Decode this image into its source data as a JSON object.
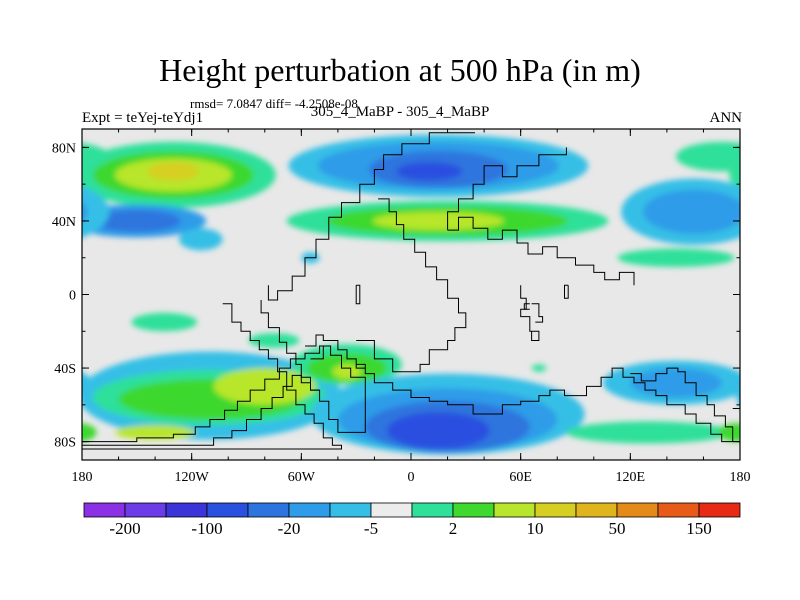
{
  "figure": {
    "title": "Height perturbation at 500 hPa (in m)",
    "stats": "rmsd= 7.0847 diff= -4.2508e-08",
    "left_label": "Expt = teYej-teYdj1",
    "center_label": "305_4_MaBP - 305_4_MaBP",
    "right_label": "ANN"
  },
  "map": {
    "projection": "cylindrical-equidistant",
    "lon_range": [
      -180,
      180
    ],
    "lat_range": [
      -90,
      90
    ],
    "x_ticks": [
      {
        "value": -180,
        "label": "180"
      },
      {
        "value": -120,
        "label": "120W"
      },
      {
        "value": -60,
        "label": "60W"
      },
      {
        "value": 0,
        "label": "0"
      },
      {
        "value": 60,
        "label": "60E"
      },
      {
        "value": 120,
        "label": "120E"
      },
      {
        "value": 180,
        "label": "180"
      }
    ],
    "y_ticks": [
      {
        "value": 80,
        "label": "80N"
      },
      {
        "value": 40,
        "label": "40N"
      },
      {
        "value": 0,
        "label": "0"
      },
      {
        "value": -40,
        "label": "40S"
      },
      {
        "value": -80,
        "label": "80S"
      }
    ],
    "background_color": "#e8e8e8",
    "coastline_color": "#000000"
  },
  "colorbar": {
    "colors": [
      "#8c30e6",
      "#6a3de8",
      "#3b34d8",
      "#2a50e0",
      "#2e74de",
      "#2e9ce8",
      "#36bfe6",
      "#ececec",
      "#2ee09a",
      "#3ed82e",
      "#b7e62c",
      "#d6cf22",
      "#e0b41c",
      "#e48a18",
      "#e85a18",
      "#e62a14"
    ],
    "labels": [
      {
        "boundary": 1,
        "text": "-200"
      },
      {
        "boundary": 3,
        "text": "-100"
      },
      {
        "boundary": 5,
        "text": "-20"
      },
      {
        "boundary": 7,
        "text": "-5"
      },
      {
        "boundary": 9,
        "text": "2"
      },
      {
        "boundary": 11,
        "text": "10"
      },
      {
        "boundary": 13,
        "text": "50"
      },
      {
        "boundary": 15,
        "text": "150"
      }
    ]
  },
  "field_blobs": [
    {
      "lon": -130,
      "lat": 65,
      "rlon": 56,
      "rlat": 18,
      "level": 8
    },
    {
      "lon": -130,
      "lat": 65,
      "rlon": 44,
      "rlat": 13,
      "level": 9
    },
    {
      "lon": -130,
      "lat": 65,
      "rlon": 32,
      "rlat": 9,
      "level": 10
    },
    {
      "lon": -130,
      "lat": 67,
      "rlon": 14,
      "rlat": 5,
      "level": 11
    },
    {
      "lon": -150,
      "lat": 40,
      "rlon": 38,
      "rlat": 9,
      "level": 5
    },
    {
      "lon": -150,
      "lat": 40,
      "rlon": 24,
      "rlat": 6,
      "level": 4
    },
    {
      "lon": -115,
      "lat": 30,
      "rlon": 12,
      "rlat": 6,
      "level": 6
    },
    {
      "lon": 15,
      "lat": 70,
      "rlon": 82,
      "rlat": 17,
      "level": 6
    },
    {
      "lon": 15,
      "lat": 70,
      "rlon": 66,
      "rlat": 13,
      "level": 5
    },
    {
      "lon": 15,
      "lat": 68,
      "rlon": 38,
      "rlat": 10,
      "level": 4
    },
    {
      "lon": 10,
      "lat": 67,
      "rlon": 18,
      "rlat": 5,
      "level": 3
    },
    {
      "lon": 20,
      "lat": 40,
      "rlon": 88,
      "rlat": 11,
      "level": 8
    },
    {
      "lon": 20,
      "lat": 40,
      "rlon": 66,
      "rlat": 8,
      "level": 9
    },
    {
      "lon": 15,
      "lat": 40,
      "rlon": 36,
      "rlat": 5,
      "level": 10
    },
    {
      "lon": 155,
      "lat": 45,
      "rlon": 40,
      "rlat": 18,
      "level": 6
    },
    {
      "lon": 155,
      "lat": 45,
      "rlon": 28,
      "rlat": 12,
      "level": 5
    },
    {
      "lon": 170,
      "lat": 75,
      "rlon": 25,
      "rlat": 8,
      "level": 8
    },
    {
      "lon": 145,
      "lat": 20,
      "rlon": 32,
      "rlat": 5,
      "level": 8
    },
    {
      "lon": -135,
      "lat": -15,
      "rlon": 18,
      "rlat": 5,
      "level": 8
    },
    {
      "lon": -55,
      "lat": 20,
      "rlon": 5,
      "rlat": 3,
      "level": 6
    },
    {
      "lon": -75,
      "lat": -25,
      "rlon": 14,
      "rlat": 4,
      "level": 8
    },
    {
      "lon": -110,
      "lat": -55,
      "rlon": 72,
      "rlat": 24,
      "level": 6
    },
    {
      "lon": -110,
      "lat": -56,
      "rlon": 64,
      "rlat": 15,
      "level": 8
    },
    {
      "lon": -110,
      "lat": -57,
      "rlon": 50,
      "rlat": 11,
      "level": 9
    },
    {
      "lon": -80,
      "lat": -50,
      "rlon": 28,
      "rlat": 10,
      "level": 10
    },
    {
      "lon": -140,
      "lat": -75,
      "rlon": 22,
      "rlat": 4,
      "level": 10
    },
    {
      "lon": -35,
      "lat": -38,
      "rlon": 30,
      "rlat": 11,
      "level": 8
    },
    {
      "lon": -35,
      "lat": -40,
      "rlon": 22,
      "rlat": 8,
      "level": 9
    },
    {
      "lon": -35,
      "lat": -42,
      "rlon": 8,
      "rlat": 4,
      "level": 10
    },
    {
      "lon": 20,
      "lat": -65,
      "rlon": 75,
      "rlat": 22,
      "level": 6
    },
    {
      "lon": 20,
      "lat": -68,
      "rlon": 60,
      "rlat": 17,
      "level": 5
    },
    {
      "lon": 20,
      "lat": -72,
      "rlon": 45,
      "rlat": 14,
      "level": 4
    },
    {
      "lon": 15,
      "lat": -74,
      "rlon": 28,
      "rlat": 10,
      "level": 3
    },
    {
      "lon": 145,
      "lat": -48,
      "rlon": 40,
      "rlat": 12,
      "level": 6
    },
    {
      "lon": 145,
      "lat": -48,
      "rlon": 25,
      "rlat": 8,
      "level": 5
    },
    {
      "lon": 130,
      "lat": -75,
      "rlon": 45,
      "rlat": 6,
      "level": 8
    },
    {
      "lon": 178,
      "lat": -75,
      "rlon": 10,
      "rlat": 5,
      "level": 9
    },
    {
      "lon": 70,
      "lat": -40,
      "rlon": 4,
      "rlat": 2,
      "level": 8
    }
  ],
  "coastlines": [
    [
      [
        -103,
        -5
      ],
      [
        -98,
        -5
      ],
      [
        -98,
        -15
      ],
      [
        -93,
        -15
      ],
      [
        -93,
        -20
      ],
      [
        -88,
        -20
      ],
      [
        -88,
        -25
      ],
      [
        -83,
        -25
      ],
      [
        -83,
        -30
      ],
      [
        -78,
        -30
      ],
      [
        -78,
        -35
      ],
      [
        -73,
        -35
      ],
      [
        -73,
        -42
      ],
      [
        -68,
        -42
      ],
      [
        -68,
        -52
      ],
      [
        -63,
        -52
      ],
      [
        -63,
        -60
      ],
      [
        -58,
        -60
      ],
      [
        -58,
        -65
      ],
      [
        -53,
        -65
      ],
      [
        -53,
        -70
      ],
      [
        -48,
        -70
      ],
      [
        -48,
        -78
      ],
      [
        -43,
        -78
      ],
      [
        -43,
        -82
      ],
      [
        -38,
        -82
      ],
      [
        -38,
        -84
      ],
      [
        -180,
        -84
      ]
    ],
    [
      [
        -180,
        -80
      ],
      [
        -150,
        -80
      ],
      [
        -150,
        -78
      ],
      [
        -130,
        -78
      ],
      [
        -130,
        -76
      ],
      [
        -118,
        -76
      ],
      [
        -118,
        -72
      ],
      [
        -110,
        -72
      ],
      [
        -110,
        -68
      ],
      [
        -102,
        -68
      ],
      [
        -102,
        -63
      ],
      [
        -95,
        -63
      ],
      [
        -95,
        -58
      ],
      [
        -88,
        -58
      ],
      [
        -88,
        -52
      ],
      [
        -80,
        -52
      ],
      [
        -80,
        -46
      ],
      [
        -72,
        -46
      ],
      [
        -72,
        -40
      ],
      [
        -66,
        -40
      ],
      [
        -66,
        -35
      ],
      [
        -58,
        -35
      ],
      [
        -58,
        -32
      ],
      [
        -50,
        -32
      ],
      [
        -50,
        -28
      ],
      [
        -44,
        -28
      ],
      [
        -44,
        -33
      ],
      [
        -38,
        -33
      ],
      [
        -38,
        -40
      ],
      [
        -33,
        -40
      ],
      [
        -33,
        -45
      ],
      [
        -25,
        -45
      ],
      [
        -25,
        -60
      ],
      [
        -25,
        -75
      ],
      [
        -40,
        -75
      ],
      [
        -40,
        -68
      ],
      [
        -45,
        -68
      ],
      [
        -45,
        -58
      ],
      [
        -50,
        -58
      ],
      [
        -50,
        -52
      ],
      [
        -55,
        -52
      ],
      [
        -55,
        -48
      ],
      [
        -60,
        -48
      ],
      [
        -60,
        -44
      ],
      [
        -65,
        -44
      ],
      [
        -65,
        -50
      ],
      [
        -70,
        -50
      ],
      [
        -70,
        -56
      ],
      [
        -76,
        -56
      ],
      [
        -76,
        -62
      ],
      [
        -82,
        -62
      ],
      [
        -82,
        -68
      ],
      [
        -90,
        -68
      ],
      [
        -90,
        -74
      ],
      [
        -98,
        -74
      ],
      [
        -98,
        -78
      ],
      [
        -108,
        -78
      ],
      [
        -108,
        -82
      ],
      [
        -180,
        -82
      ]
    ],
    [
      [
        -55,
        -35
      ],
      [
        -48,
        -35
      ],
      [
        -48,
        -28
      ],
      [
        -44,
        -28
      ]
    ],
    [
      [
        -82,
        -3
      ],
      [
        -82,
        -10
      ],
      [
        -78,
        -10
      ],
      [
        -78,
        -18
      ],
      [
        -72,
        -18
      ],
      [
        -72,
        -26
      ],
      [
        -68,
        -26
      ],
      [
        -68,
        -32
      ],
      [
        -63,
        -32
      ],
      [
        -63,
        -38
      ],
      [
        -60,
        -38
      ],
      [
        -60,
        -45
      ],
      [
        -55,
        -45
      ],
      [
        -55,
        -52
      ],
      [
        -50,
        -52
      ]
    ],
    [
      [
        -58,
        -28
      ],
      [
        -52,
        -28
      ],
      [
        -52,
        -22
      ],
      [
        -48,
        -22
      ],
      [
        -48,
        -25
      ],
      [
        -40,
        -25
      ],
      [
        -40,
        -30
      ],
      [
        -35,
        -30
      ],
      [
        -35,
        -35
      ],
      [
        -30,
        -35
      ],
      [
        -30,
        -40
      ],
      [
        -25,
        -40
      ]
    ],
    [
      [
        -30,
        5
      ],
      [
        -30,
        -5
      ],
      [
        -28,
        -5
      ],
      [
        -28,
        5
      ],
      [
        -30,
        5
      ]
    ],
    [
      [
        -78,
        5
      ],
      [
        -78,
        -3
      ],
      [
        -73,
        -3
      ],
      [
        -73,
        2
      ],
      [
        -65,
        2
      ],
      [
        -65,
        10
      ],
      [
        -58,
        10
      ],
      [
        -58,
        20
      ],
      [
        -52,
        20
      ],
      [
        -52,
        30
      ],
      [
        -45,
        30
      ],
      [
        -45,
        42
      ],
      [
        -38,
        42
      ],
      [
        -38,
        50
      ],
      [
        -28,
        50
      ],
      [
        -28,
        60
      ],
      [
        -20,
        60
      ],
      [
        -20,
        68
      ],
      [
        -15,
        68
      ],
      [
        -15,
        76
      ],
      [
        -5,
        76
      ],
      [
        -5,
        82
      ],
      [
        10,
        82
      ],
      [
        10,
        88
      ],
      [
        35,
        88
      ]
    ],
    [
      [
        -18,
        52
      ],
      [
        -12,
        52
      ],
      [
        -12,
        45
      ],
      [
        -8,
        45
      ],
      [
        -8,
        38
      ],
      [
        -4,
        38
      ],
      [
        -4,
        30
      ],
      [
        2,
        30
      ],
      [
        2,
        23
      ],
      [
        8,
        23
      ],
      [
        8,
        15
      ],
      [
        14,
        15
      ],
      [
        14,
        8
      ],
      [
        20,
        8
      ],
      [
        20,
        -2
      ],
      [
        26,
        -2
      ],
      [
        26,
        -10
      ],
      [
        30,
        -10
      ],
      [
        30,
        -18
      ],
      [
        24,
        -18
      ],
      [
        24,
        -25
      ],
      [
        20,
        -25
      ],
      [
        20,
        -30
      ],
      [
        10,
        -30
      ],
      [
        10,
        -38
      ],
      [
        5,
        -38
      ],
      [
        5,
        -42
      ],
      [
        -10,
        -42
      ],
      [
        -10,
        -35
      ],
      [
        -20,
        -35
      ],
      [
        -20,
        -25
      ],
      [
        -30,
        -25
      ]
    ],
    [
      [
        20,
        35
      ],
      [
        26,
        35
      ],
      [
        26,
        42
      ],
      [
        34,
        42
      ],
      [
        34,
        36
      ],
      [
        42,
        36
      ],
      [
        42,
        30
      ],
      [
        50,
        30
      ],
      [
        50,
        35
      ],
      [
        58,
        35
      ],
      [
        58,
        28
      ],
      [
        64,
        28
      ],
      [
        64,
        22
      ],
      [
        72,
        22
      ],
      [
        72,
        26
      ],
      [
        80,
        26
      ],
      [
        80,
        20
      ],
      [
        90,
        20
      ],
      [
        90,
        16
      ],
      [
        100,
        16
      ],
      [
        100,
        12
      ],
      [
        106,
        12
      ],
      [
        106,
        8
      ],
      [
        114,
        8
      ],
      [
        114,
        12
      ],
      [
        122,
        12
      ],
      [
        122,
        5
      ]
    ],
    [
      [
        20,
        35
      ],
      [
        20,
        45
      ],
      [
        26,
        45
      ],
      [
        26,
        52
      ],
      [
        34,
        52
      ],
      [
        34,
        60
      ],
      [
        40,
        60
      ],
      [
        40,
        70
      ],
      [
        50,
        70
      ],
      [
        50,
        64
      ],
      [
        58,
        64
      ],
      [
        58,
        70
      ],
      [
        70,
        70
      ],
      [
        70,
        76
      ],
      [
        85,
        76
      ],
      [
        85,
        80
      ]
    ],
    [
      [
        60,
        5
      ],
      [
        60,
        -2
      ],
      [
        63,
        -2
      ],
      [
        63,
        -8
      ],
      [
        60,
        -8
      ],
      [
        60,
        -12
      ],
      [
        65,
        -12
      ],
      [
        65,
        -20
      ],
      [
        70,
        -20
      ],
      [
        70,
        -25
      ],
      [
        66,
        -25
      ],
      [
        66,
        -20
      ]
    ],
    [
      [
        66,
        -5
      ],
      [
        70,
        -5
      ],
      [
        70,
        -12
      ],
      [
        72,
        -12
      ],
      [
        72,
        -15
      ],
      [
        68,
        -15
      ]
    ],
    [
      [
        65,
        -8
      ],
      [
        62,
        -8
      ],
      [
        62,
        -5
      ],
      [
        65,
        -5
      ]
    ],
    [
      [
        -30,
        -38
      ],
      [
        -25,
        -38
      ],
      [
        -25,
        -43
      ],
      [
        -20,
        -43
      ],
      [
        -20,
        -48
      ],
      [
        -10,
        -48
      ],
      [
        -10,
        -52
      ],
      [
        0,
        -52
      ],
      [
        0,
        -56
      ],
      [
        10,
        -56
      ],
      [
        10,
        -58
      ],
      [
        20,
        -58
      ],
      [
        20,
        -60
      ],
      [
        34,
        -60
      ],
      [
        34,
        -65
      ],
      [
        50,
        -65
      ],
      [
        50,
        -60
      ],
      [
        60,
        -60
      ],
      [
        60,
        -58
      ],
      [
        70,
        -58
      ],
      [
        70,
        -55
      ],
      [
        76,
        -55
      ],
      [
        76,
        -52
      ],
      [
        84,
        -52
      ],
      [
        84,
        -55
      ],
      [
        96,
        -55
      ],
      [
        96,
        -50
      ],
      [
        104,
        -50
      ],
      [
        104,
        -45
      ],
      [
        110,
        -45
      ],
      [
        110,
        -40
      ],
      [
        116,
        -40
      ],
      [
        116,
        -45
      ],
      [
        122,
        -45
      ],
      [
        122,
        -48
      ],
      [
        128,
        -48
      ],
      [
        128,
        -52
      ],
      [
        134,
        -52
      ],
      [
        134,
        -55
      ],
      [
        140,
        -55
      ],
      [
        140,
        -60
      ],
      [
        150,
        -60
      ],
      [
        150,
        -65
      ],
      [
        156,
        -65
      ],
      [
        156,
        -70
      ],
      [
        164,
        -70
      ],
      [
        164,
        -76
      ],
      [
        170,
        -76
      ],
      [
        170,
        -80
      ],
      [
        180,
        -80
      ]
    ],
    [
      [
        120,
        -43
      ],
      [
        126,
        -43
      ],
      [
        126,
        -47
      ],
      [
        134,
        -47
      ],
      [
        134,
        -43
      ],
      [
        140,
        -43
      ],
      [
        140,
        -40
      ],
      [
        146,
        -40
      ],
      [
        146,
        -42
      ],
      [
        150,
        -42
      ],
      [
        150,
        -48
      ],
      [
        156,
        -48
      ],
      [
        156,
        -55
      ],
      [
        162,
        -55
      ],
      [
        162,
        -60
      ],
      [
        166,
        -60
      ],
      [
        166,
        -66
      ],
      [
        172,
        -66
      ],
      [
        172,
        -72
      ],
      [
        176,
        -72
      ],
      [
        176,
        -80
      ]
    ],
    [
      [
        86,
        5
      ],
      [
        86,
        -2
      ],
      [
        84,
        -2
      ],
      [
        84,
        5
      ],
      [
        86,
        5
      ]
    ],
    [
      [
        176,
        -62
      ],
      [
        180,
        -62
      ]
    ]
  ]
}
